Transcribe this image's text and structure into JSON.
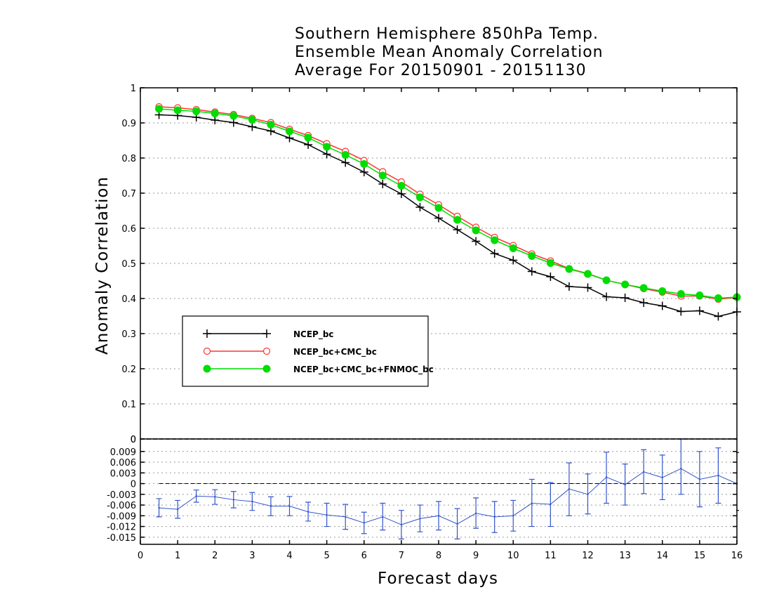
{
  "chart_data": [
    {
      "type": "line",
      "title": "Southern Hemisphere 850hPa Temp.",
      "subtitle_lines": [
        "Ensemble Mean Anomaly Correlation",
        "Average For 20150901 - 20151130"
      ],
      "xlabel": "Forecast days",
      "ylabel": "Anomaly Correlation",
      "xlim": [
        0,
        16
      ],
      "ylim": [
        0,
        1
      ],
      "x_ticks": [
        "0",
        "1",
        "2",
        "3",
        "4",
        "5",
        "6",
        "7",
        "8",
        "9",
        "10",
        "11",
        "12",
        "13",
        "14",
        "15",
        "16"
      ],
      "y_ticks": [
        "0",
        "0.1",
        "0.2",
        "0.3",
        "0.4",
        "0.5",
        "0.6",
        "0.7",
        "0.8",
        "0.9",
        "1"
      ],
      "grid": true,
      "legend_position": "lower-left",
      "x": [
        0.5,
        1,
        1.5,
        2,
        2.5,
        3,
        3.5,
        4,
        4.5,
        5,
        5.5,
        6,
        6.5,
        7,
        7.5,
        8,
        8.5,
        9,
        9.5,
        10,
        10.5,
        11,
        11.5,
        12,
        12.5,
        13,
        13.5,
        14,
        14.5,
        15,
        15.5,
        16
      ],
      "series": [
        {
          "name": "NCEP_bc",
          "color": "#000000",
          "marker": "plus",
          "values": [
            0.923,
            0.921,
            0.916,
            0.908,
            0.901,
            0.889,
            0.877,
            0.857,
            0.838,
            0.811,
            0.787,
            0.76,
            0.726,
            0.698,
            0.66,
            0.629,
            0.596,
            0.563,
            0.528,
            0.509,
            0.477,
            0.462,
            0.434,
            0.431,
            0.405,
            0.402,
            0.388,
            0.379,
            0.363,
            0.365,
            0.349,
            0.362
          ]
        },
        {
          "name": "NCEP_bc+CMC_bc",
          "color": "#ff3333",
          "marker": "open-circle",
          "values": [
            0.946,
            0.943,
            0.938,
            0.931,
            0.924,
            0.913,
            0.901,
            0.882,
            0.864,
            0.841,
            0.819,
            0.793,
            0.761,
            0.732,
            0.697,
            0.667,
            0.634,
            0.603,
            0.574,
            0.551,
            0.527,
            0.507,
            0.485,
            0.471,
            0.452,
            0.44,
            0.428,
            0.418,
            0.407,
            0.407,
            0.398,
            0.403
          ]
        },
        {
          "name": "NCEP_bc+CMC_bc+FNMOC_bc",
          "color": "#00dd00",
          "marker": "filled-circle",
          "values": [
            0.94,
            0.936,
            0.933,
            0.927,
            0.92,
            0.909,
            0.895,
            0.876,
            0.858,
            0.832,
            0.809,
            0.783,
            0.75,
            0.721,
            0.688,
            0.658,
            0.624,
            0.594,
            0.566,
            0.543,
            0.521,
            0.501,
            0.484,
            0.47,
            0.452,
            0.44,
            0.43,
            0.421,
            0.413,
            0.409,
            0.401,
            0.404
          ]
        }
      ]
    },
    {
      "type": "line",
      "xlim": [
        0,
        16
      ],
      "ylim": [
        -0.017,
        0.0125
      ],
      "x_ticks": [
        "0",
        "1",
        "2",
        "3",
        "4",
        "5",
        "6",
        "7",
        "8",
        "9",
        "10",
        "11",
        "12",
        "13",
        "14",
        "15",
        "16"
      ],
      "y_ticks": [
        "0.009",
        "0.006",
        "0.003",
        "0",
        "-0.003",
        "-0.006",
        "-0.009",
        "-0.012",
        "-0.015"
      ],
      "top_tick_label": "0",
      "grid": true,
      "reference_line": 0,
      "series": [
        {
          "color": "#3355cc",
          "marker": "error-bars",
          "x": [
            0.5,
            1,
            1.5,
            2,
            2.5,
            3,
            3.5,
            4,
            4.5,
            5,
            5.5,
            6,
            6.5,
            7,
            7.5,
            8,
            8.5,
            9,
            9.5,
            10,
            10.5,
            11,
            11.5,
            12,
            12.5,
            13,
            13.5,
            14,
            14.5,
            15,
            15.5,
            16
          ],
          "values": [
            -0.0068,
            -0.0072,
            -0.0035,
            -0.0037,
            -0.0045,
            -0.005,
            -0.0063,
            -0.0063,
            -0.0079,
            -0.0088,
            -0.0093,
            -0.011,
            -0.0093,
            -0.0115,
            -0.0098,
            -0.009,
            -0.0113,
            -0.0083,
            -0.0093,
            -0.009,
            -0.0055,
            -0.0058,
            -0.0015,
            -0.003,
            0.0018,
            -0.0003,
            0.0033,
            0.0017,
            0.0042,
            0.0012,
            0.0023,
            0.0
          ],
          "err_low": [
            -0.0093,
            -0.0097,
            -0.0052,
            -0.0058,
            -0.0068,
            -0.0075,
            -0.009,
            -0.009,
            -0.0105,
            -0.012,
            -0.0128,
            -0.014,
            -0.013,
            -0.0155,
            -0.0135,
            -0.013,
            -0.0155,
            -0.0125,
            -0.0137,
            -0.0133,
            -0.012,
            -0.012,
            -0.009,
            -0.0085,
            -0.0055,
            -0.006,
            -0.0028,
            -0.0045,
            -0.003,
            -0.0065,
            -0.0055,
            null
          ],
          "err_high": [
            -0.0042,
            -0.0047,
            -0.0018,
            -0.0017,
            -0.0022,
            -0.0025,
            -0.0037,
            -0.0036,
            -0.0052,
            -0.0055,
            -0.0058,
            -0.008,
            -0.0055,
            -0.0075,
            -0.006,
            -0.005,
            -0.007,
            -0.004,
            -0.005,
            -0.0047,
            0.0012,
            0.0003,
            0.0058,
            0.0027,
            0.0088,
            0.0055,
            0.0095,
            0.008,
            0.0125,
            0.009,
            0.01,
            null
          ]
        }
      ]
    }
  ]
}
